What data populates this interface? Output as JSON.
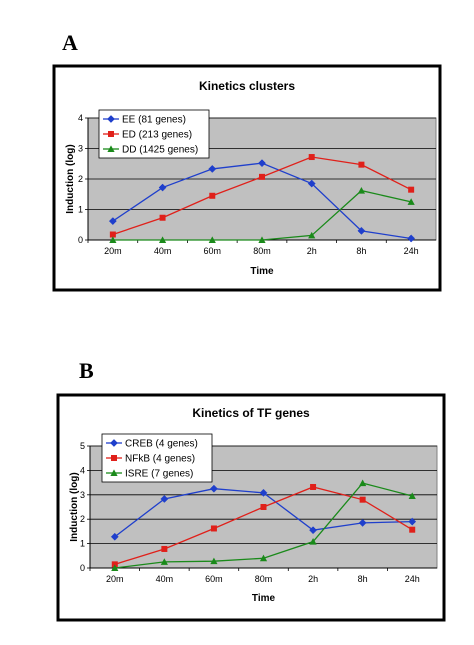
{
  "panels": [
    {
      "letter": "A"
    },
    {
      "letter": "B"
    }
  ],
  "chart_data": [
    {
      "type": "line",
      "title": "Kinetics clusters",
      "xlabel": "Time",
      "ylabel": "Induction (log)",
      "categories": [
        "20m",
        "40m",
        "60m",
        "80m",
        "2h",
        "8h",
        "24h"
      ],
      "ylim": [
        0,
        4
      ],
      "yticks": [
        "0",
        "1",
        "2",
        "3",
        "4"
      ],
      "grid": true,
      "legend": "top-left",
      "series": [
        {
          "name": "EE (81 genes)",
          "color": "#1f3fcc",
          "marker": "diamond",
          "values": [
            0.62,
            1.72,
            2.33,
            2.52,
            1.85,
            0.3,
            0.05
          ]
        },
        {
          "name": "ED (213 genes)",
          "color": "#e0201a",
          "marker": "square",
          "values": [
            0.18,
            0.73,
            1.45,
            2.07,
            2.72,
            2.47,
            1.65
          ]
        },
        {
          "name": "DD (1425 genes)",
          "color": "#1a8a1a",
          "marker": "triangle",
          "values": [
            0.0,
            0.0,
            0.0,
            0.0,
            0.15,
            1.62,
            1.25
          ]
        }
      ]
    },
    {
      "type": "line",
      "title": "Kinetics of TF genes",
      "xlabel": "Time",
      "ylabel": "Induction (log)",
      "categories": [
        "20m",
        "40m",
        "60m",
        "80m",
        "2h",
        "8h",
        "24h"
      ],
      "ylim": [
        0,
        5
      ],
      "yticks": [
        "0",
        "1",
        "2",
        "3",
        "4",
        "5"
      ],
      "grid": true,
      "legend": "top-left",
      "series": [
        {
          "name": "CREB (4 genes)",
          "color": "#1f3fcc",
          "marker": "diamond",
          "values": [
            1.28,
            2.83,
            3.25,
            3.08,
            1.55,
            1.85,
            1.9
          ]
        },
        {
          "name": "NFkB (4 genes)",
          "color": "#e0201a",
          "marker": "square",
          "values": [
            0.15,
            0.78,
            1.62,
            2.5,
            3.32,
            2.8,
            1.57
          ]
        },
        {
          "name": "ISRE (7 genes)",
          "color": "#1a8a1a",
          "marker": "triangle",
          "values": [
            0.0,
            0.25,
            0.28,
            0.4,
            1.08,
            3.48,
            2.95
          ]
        }
      ]
    }
  ]
}
